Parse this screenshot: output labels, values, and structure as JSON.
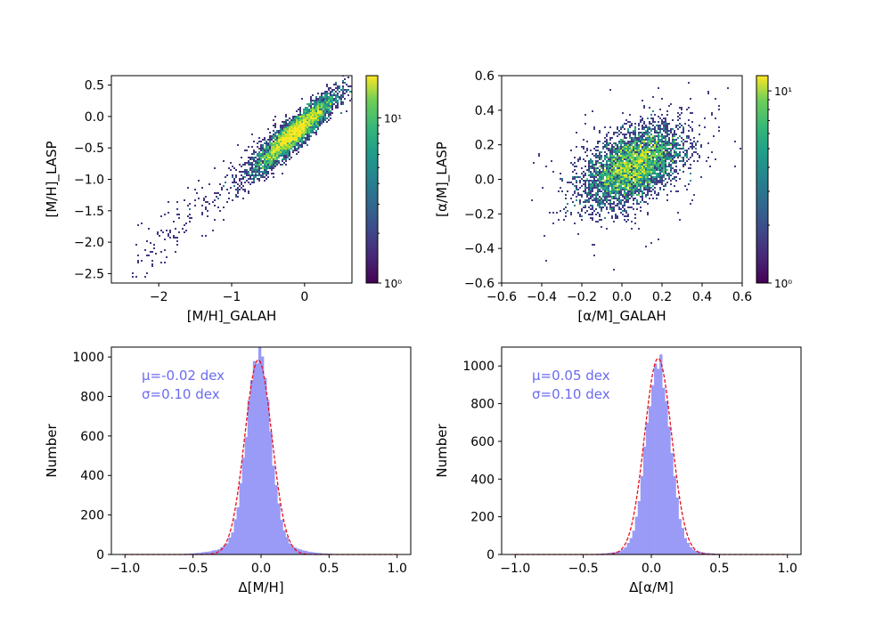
{
  "chart_data": [
    {
      "type": "scatter",
      "xlabel": "[M/H]_GALAH",
      "ylabel": "[M/H]_LASP",
      "xlim": [
        -2.65,
        0.65
      ],
      "ylim": [
        -2.65,
        0.65
      ],
      "xticks": [
        {
          "v": -2,
          "t": "−2"
        },
        {
          "v": -1,
          "t": "−1"
        },
        {
          "v": 0,
          "t": "0"
        }
      ],
      "yticks": [
        {
          "v": 0.5,
          "t": "0.5"
        },
        {
          "v": 0.0,
          "t": "0.0"
        },
        {
          "v": -0.5,
          "t": "−0.5"
        },
        {
          "v": -1.0,
          "t": "−1.0"
        },
        {
          "v": -1.5,
          "t": "−1.5"
        },
        {
          "v": -2.0,
          "t": "−2.0"
        },
        {
          "v": -2.5,
          "t": "−2.5"
        }
      ],
      "density": {
        "center": [
          -0.15,
          -0.25
        ],
        "slope": 1.0,
        "spread_x": 0.28,
        "scatter_y": 0.12
      },
      "colorbar": {
        "scale": "log",
        "range": [
          1,
          18
        ],
        "cmap": "viridis",
        "ticks": [
          {
            "v": 1,
            "t": "10⁰"
          },
          {
            "v": 10,
            "t": "10¹"
          }
        ]
      },
      "grid": false
    },
    {
      "type": "scatter",
      "xlabel": "[α/M]_GALAH",
      "ylabel": "[α/M]_LASP",
      "xlim": [
        -0.6,
        0.6
      ],
      "ylim": [
        -0.6,
        0.6
      ],
      "xticks": [
        {
          "v": -0.6,
          "t": "−0.6"
        },
        {
          "v": -0.4,
          "t": "−0.4"
        },
        {
          "v": -0.2,
          "t": "−0.2"
        },
        {
          "v": 0.0,
          "t": "0.0"
        },
        {
          "v": 0.2,
          "t": "0.2"
        },
        {
          "v": 0.4,
          "t": "0.4"
        },
        {
          "v": 0.6,
          "t": "0.6"
        }
      ],
      "yticks": [
        {
          "v": 0.6,
          "t": "0.6"
        },
        {
          "v": 0.4,
          "t": "0.4"
        },
        {
          "v": 0.2,
          "t": "0.2"
        },
        {
          "v": 0.0,
          "t": "0.0"
        },
        {
          "v": -0.2,
          "t": "−0.2"
        },
        {
          "v": -0.4,
          "t": "−0.4"
        },
        {
          "v": -0.6,
          "t": "−0.6"
        }
      ],
      "density": {
        "center": [
          0.05,
          0.08
        ],
        "slope": 0.45,
        "spread_x": 0.12,
        "scatter_y": 0.1
      },
      "colorbar": {
        "scale": "log",
        "range": [
          1,
          12
        ],
        "cmap": "viridis",
        "ticks": [
          {
            "v": 1,
            "t": "10⁰"
          },
          {
            "v": 10,
            "t": "10¹"
          }
        ]
      },
      "grid": false
    },
    {
      "type": "bar",
      "xlabel": "Δ[M/H]",
      "ylabel": "Number",
      "xlim": [
        -1.1,
        1.1
      ],
      "ylim": [
        0,
        1050
      ],
      "xticks": [
        {
          "v": -1.0,
          "t": "−1.0"
        },
        {
          "v": -0.5,
          "t": "−0.5"
        },
        {
          "v": 0.0,
          "t": "0.0"
        },
        {
          "v": 0.5,
          "t": "0.5"
        },
        {
          "v": 1.0,
          "t": "1.0"
        }
      ],
      "yticks": [
        {
          "v": 0,
          "t": "0"
        },
        {
          "v": 200,
          "t": "200"
        },
        {
          "v": 400,
          "t": "400"
        },
        {
          "v": 600,
          "t": "600"
        },
        {
          "v": 800,
          "t": "800"
        },
        {
          "v": 1000,
          "t": "1000"
        }
      ],
      "histogram": {
        "range": [
          -1.0,
          1.0
        ],
        "bins": 100,
        "peak": 1010,
        "core_sigma": 0.085,
        "wing_sigma": 0.22,
        "wing_frac": 0.06
      },
      "gaussian_fit": {
        "mu": -0.02,
        "sigma": 0.1,
        "amplitude": 985
      },
      "annotations": [
        "μ=-0.02 dex",
        "σ=0.10 dex"
      ]
    },
    {
      "type": "bar",
      "xlabel": "Δ[α/M]",
      "ylabel": "Number",
      "xlim": [
        -1.1,
        1.1
      ],
      "ylim": [
        0,
        1100
      ],
      "xticks": [
        {
          "v": -1.0,
          "t": "−1.0"
        },
        {
          "v": -0.5,
          "t": "−0.5"
        },
        {
          "v": 0.0,
          "t": "0.0"
        },
        {
          "v": 0.5,
          "t": "0.5"
        },
        {
          "v": 1.0,
          "t": "1.0"
        }
      ],
      "yticks": [
        {
          "v": 0,
          "t": "0"
        },
        {
          "v": 200,
          "t": "200"
        },
        {
          "v": 400,
          "t": "400"
        },
        {
          "v": 600,
          "t": "600"
        },
        {
          "v": 800,
          "t": "800"
        },
        {
          "v": 1000,
          "t": "1000"
        }
      ],
      "histogram": {
        "range": [
          -1.0,
          1.0
        ],
        "bins": 100,
        "peak": 1040,
        "core_sigma": 0.085,
        "wing_sigma": 0.2,
        "wing_frac": 0.04
      },
      "gaussian_fit": {
        "mu": 0.05,
        "sigma": 0.1,
        "amplitude": 1040
      },
      "annotations": [
        "μ=0.05 dex",
        "σ=0.10 dex"
      ]
    }
  ],
  "colors": {
    "histogram": "#9a9af7",
    "fit": "#e8101a",
    "annotation": "#6b6bf0",
    "axis": "#000000"
  }
}
